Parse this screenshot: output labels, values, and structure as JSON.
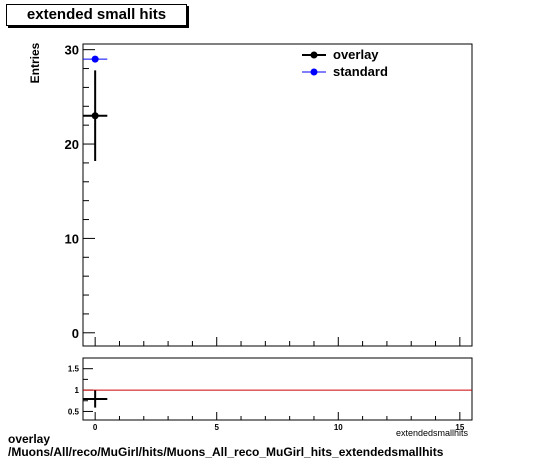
{
  "chart_data": [
    {
      "type": "scatter",
      "title": "extended small hits",
      "xlabel": "",
      "ylabel": "Entries",
      "xlim": [
        -0.5,
        15.5
      ],
      "ylim": [
        -1.4,
        30.6
      ],
      "yticks": [
        0,
        10,
        20,
        30
      ],
      "grid": false,
      "legend_placement": "top-right",
      "series": [
        {
          "name": "overlay",
          "color": "#000000",
          "points": [
            {
              "x": 0,
              "y": 23,
              "xerr": 0.5,
              "yerr": 4.8
            }
          ]
        },
        {
          "name": "standard",
          "color": "#0000ff",
          "points": [
            {
              "x": 0,
              "y": 29,
              "xerr": 0.5,
              "yerr": 0
            }
          ]
        }
      ]
    },
    {
      "type": "scatter",
      "title": "",
      "ylabel": "",
      "xlim": [
        -0.5,
        15.5
      ],
      "ylim": [
        0.3,
        1.75
      ],
      "xticks": [
        0,
        5,
        10,
        15
      ],
      "yticks": [
        0.5,
        1,
        1.5
      ],
      "reference_line": {
        "y": 1,
        "color": "#cc0000"
      },
      "series": [
        {
          "name": "",
          "color": "#000000",
          "points": [
            {
              "x": 0,
              "y": 0.79,
              "xerr": 0.5,
              "yerr": 0.2
            }
          ]
        }
      ]
    }
  ],
  "xaxis_caption": "extendedsmallhits",
  "footer": {
    "line1": "overlay",
    "line2": "/Muons/All/reco/MuGirl/hits/Muons_All_reco_MuGirl_hits_extendedsmallhits"
  }
}
